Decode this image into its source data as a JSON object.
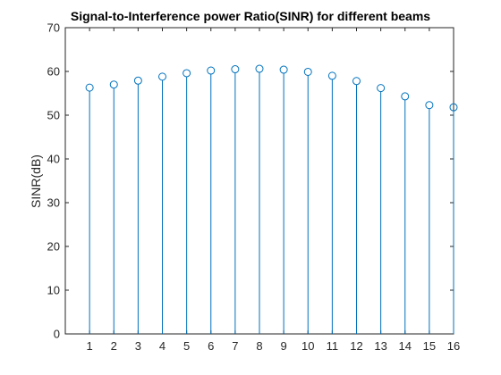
{
  "chart_data": {
    "type": "stem",
    "title": "Signal-to-Interference power Ratio(SINR) for different beams",
    "xlabel": "",
    "ylabel": "SINR(dB)",
    "x": [
      1,
      2,
      3,
      4,
      5,
      6,
      7,
      8,
      9,
      10,
      11,
      12,
      13,
      14,
      15,
      16
    ],
    "values": [
      56.3,
      57.0,
      57.9,
      58.8,
      59.6,
      60.2,
      60.5,
      60.6,
      60.4,
      59.9,
      59.0,
      57.8,
      56.2,
      54.3,
      52.3,
      51.8
    ],
    "xlim": [
      0,
      16
    ],
    "ylim": [
      0,
      70
    ],
    "xticks": [
      "1",
      "2",
      "3",
      "4",
      "5",
      "6",
      "7",
      "8",
      "9",
      "10",
      "11",
      "12",
      "13",
      "14",
      "15",
      "16"
    ],
    "yticks": [
      "0",
      "10",
      "20",
      "30",
      "40",
      "50",
      "60",
      "70"
    ],
    "grid": false,
    "legend": "none",
    "colors": {
      "series": "#0072bd",
      "axes": "#262626"
    }
  }
}
